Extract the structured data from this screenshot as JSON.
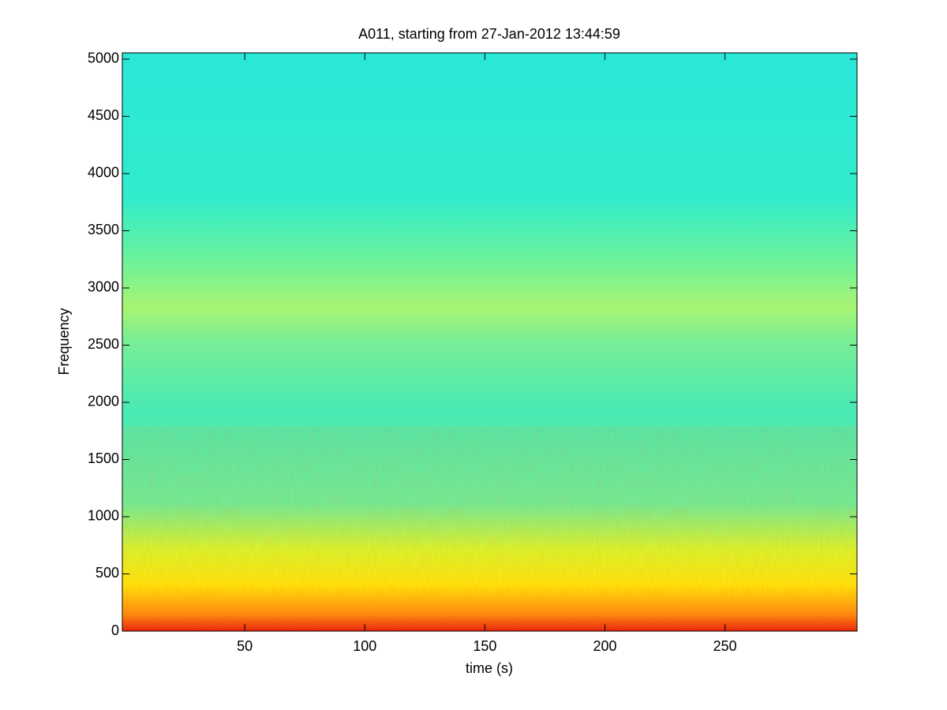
{
  "chart_data": {
    "type": "spectrogram",
    "title": "A011, starting from 27-Jan-2012 13:44:59",
    "x_label": "time (s)",
    "y_label": "Frequency",
    "xlim": [
      -1,
      305
    ],
    "xticks": [
      50,
      100,
      150,
      200,
      250
    ],
    "ylim": [
      0,
      5055
    ],
    "yticks": [
      0,
      500,
      1000,
      1500,
      2000,
      2500,
      3000,
      3500,
      4000,
      4500,
      5000
    ]
  }
}
